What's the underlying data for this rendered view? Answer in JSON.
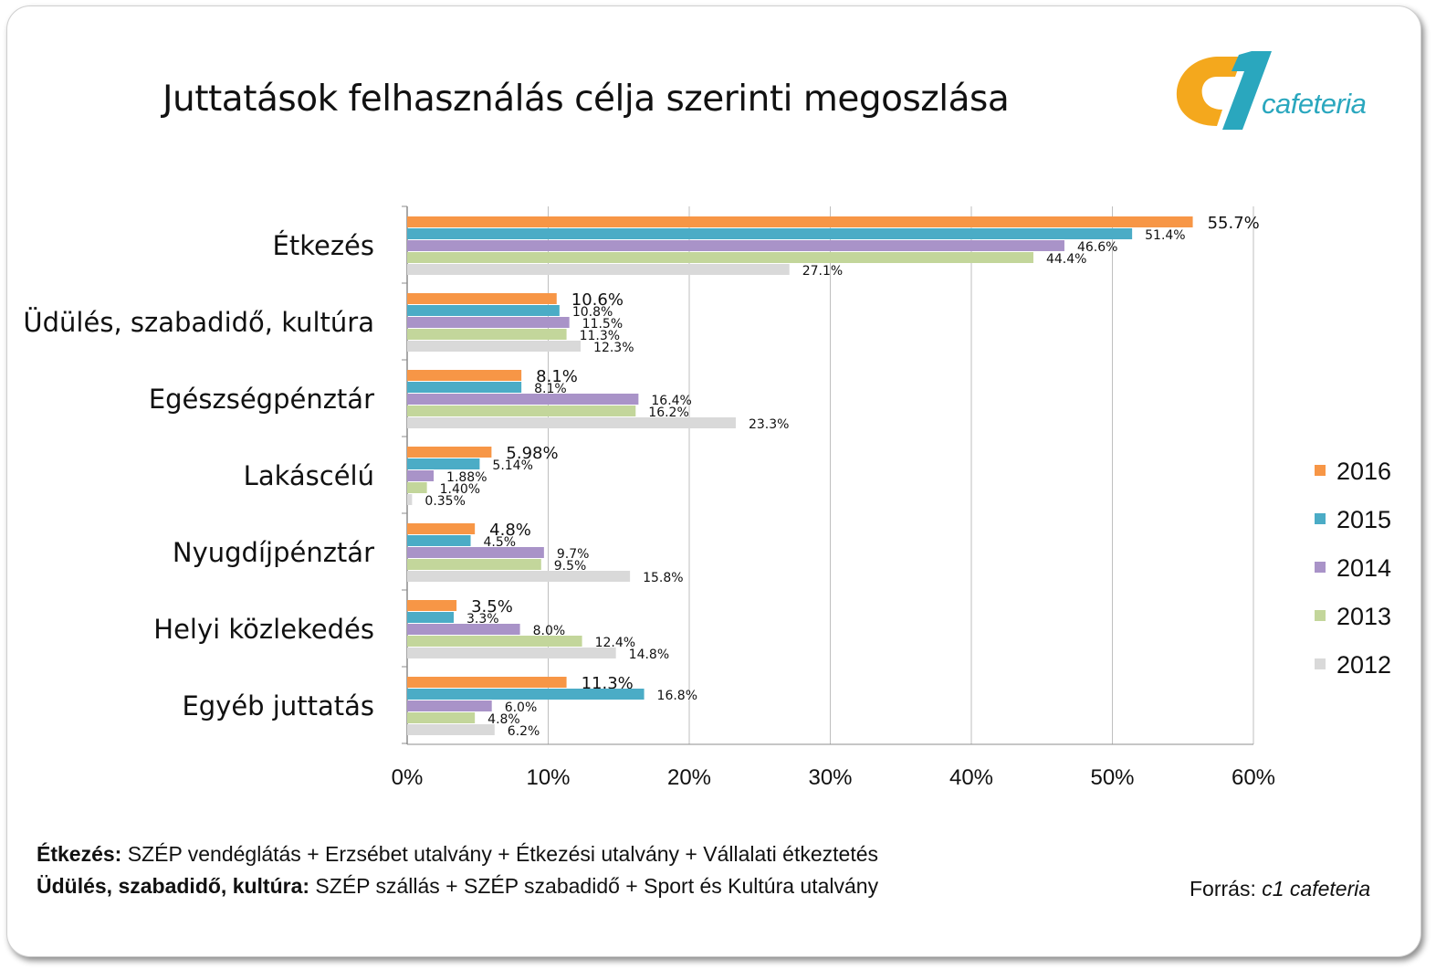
{
  "title": "Juttatások felhasználás célja szerinti megoszlása",
  "logo": {
    "text": "cafeteria",
    "colors": {
      "c_shape": "#f4a81d",
      "one_shape": "#2aa7be"
    }
  },
  "colors": {
    "2016": "#f79646",
    "2015": "#4bacc6",
    "2014": "#a993c8",
    "2013": "#c3d69b",
    "2012": "#d9d9d9"
  },
  "chart_data": {
    "type": "bar",
    "orientation": "horizontal",
    "categories": [
      "Étkezés",
      "Üdülés, szabadidő, kultúra",
      "Egészségpénztár",
      "Lakáscélú",
      "Nyugdíjpénztár",
      "Helyi közlekedés",
      "Egyéb juttatás"
    ],
    "series": [
      {
        "name": "2016",
        "values": [
          55.7,
          10.6,
          8.1,
          5.98,
          4.8,
          3.5,
          11.3
        ],
        "labels": [
          "55.7%",
          "10.6%",
          "8.1%",
          "5.98%",
          "4.8%",
          "3.5%",
          "11.3%"
        ]
      },
      {
        "name": "2015",
        "values": [
          51.4,
          10.8,
          8.1,
          5.14,
          4.5,
          3.3,
          16.8
        ],
        "labels": [
          "51.4%",
          "10.8%",
          "8.1%",
          "5.14%",
          "4.5%",
          "3.3%",
          "16.8%"
        ]
      },
      {
        "name": "2014",
        "values": [
          46.6,
          11.5,
          16.4,
          1.88,
          9.7,
          8.0,
          6.0
        ],
        "labels": [
          "46.6%",
          "11.5%",
          "16.4%",
          "1.88%",
          "9.7%",
          "8.0%",
          "6.0%"
        ]
      },
      {
        "name": "2013",
        "values": [
          44.4,
          11.3,
          16.2,
          1.4,
          9.5,
          12.4,
          4.8
        ],
        "labels": [
          "44.4%",
          "11.3%",
          "16.2%",
          "1.40%",
          "9.5%",
          "12.4%",
          "4.8%"
        ]
      },
      {
        "name": "2012",
        "values": [
          27.1,
          12.3,
          23.3,
          0.35,
          15.8,
          14.8,
          6.2
        ],
        "labels": [
          "27.1%",
          "12.3%",
          "23.3%",
          "0.35%",
          "15.8%",
          "14.8%",
          "6.2%"
        ]
      }
    ],
    "xlim": [
      0,
      60
    ],
    "xticks": [
      0,
      10,
      20,
      30,
      40,
      50,
      60
    ],
    "xtick_labels": [
      "0%",
      "10%",
      "20%",
      "30%",
      "40%",
      "50%",
      "60%"
    ],
    "grid": "vertical",
    "legend": {
      "placement": "right",
      "entries": [
        "2016",
        "2015",
        "2014",
        "2013",
        "2012"
      ]
    }
  },
  "footnotes": [
    {
      "term": "Étkezés:",
      "text": " SZÉP vendéglátás + Erzsébet utalvány + Étkezési utalvány + Vállalati étkeztetés"
    },
    {
      "term": "Üdülés, szabadidő, kultúra:",
      "text": " SZÉP szállás + SZÉP szabadidő + Sport és Kultúra utalvány"
    }
  ],
  "source": {
    "prefix": "Forrás: ",
    "name": "c1 cafeteria"
  }
}
